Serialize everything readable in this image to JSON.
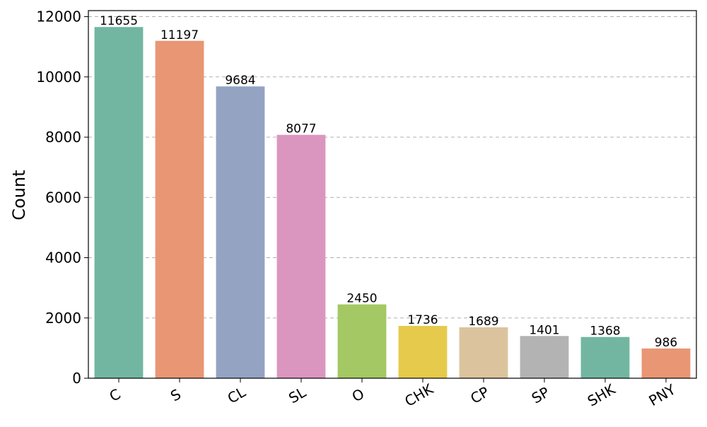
{
  "chart_data": {
    "type": "bar",
    "categories": [
      "C",
      "S",
      "CL",
      "SL",
      "O",
      "CHK",
      "CP",
      "SP",
      "SHK",
      "PNY"
    ],
    "values": [
      11655,
      11197,
      9684,
      8077,
      2450,
      1736,
      1689,
      1401,
      1368,
      986
    ],
    "bar_labels": [
      "11655",
      "11197",
      "9684",
      "8077",
      "2450",
      "1736",
      "1689",
      "1401",
      "1368",
      "986"
    ],
    "colors": [
      "#72b6a1",
      "#e99675",
      "#95a3c3",
      "#db96c0",
      "#a4c863",
      "#e5ca4b",
      "#dbc49d",
      "#b3b3b3",
      "#72b6a1",
      "#e99675"
    ],
    "title": "",
    "xlabel": "",
    "ylabel": "Count",
    "ylim": [
      0,
      12200
    ],
    "yticks": [
      0,
      2000,
      4000,
      6000,
      8000,
      10000,
      12000
    ],
    "ytick_labels": [
      "0",
      "2000",
      "4000",
      "6000",
      "8000",
      "10000",
      "12000"
    ],
    "grid": "y-dashed",
    "legend": "none"
  }
}
